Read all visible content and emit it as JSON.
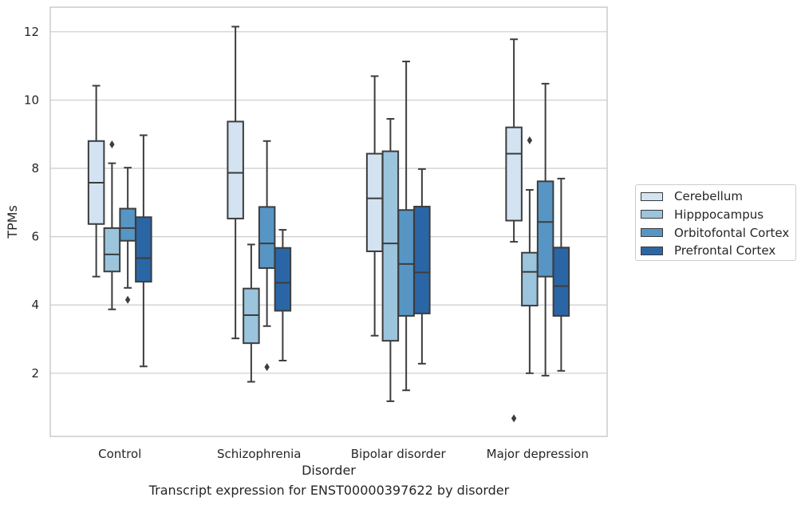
{
  "caption": "Transcript expression for ENST00000397622 by disorder",
  "chart_data": {
    "type": "boxplot",
    "title": "",
    "xlabel": "Disorder",
    "ylabel": "TPMs",
    "ylim": [
      0.15,
      12.72
    ],
    "yticks": [
      2,
      4,
      6,
      8,
      10,
      12
    ],
    "grid": "horizontal",
    "legend_position": "right",
    "categories": [
      "Control",
      "Schizophrenia",
      "Bipolar disorder",
      "Major depression"
    ],
    "series": [
      {
        "name": "Cerebellum",
        "color": "#d3e3f2",
        "boxes": [
          {
            "whislo": 4.83,
            "q1": 6.37,
            "med": 7.58,
            "q3": 8.8,
            "whishi": 10.42,
            "fliers": []
          },
          {
            "whislo": 3.02,
            "q1": 6.53,
            "med": 7.87,
            "q3": 9.37,
            "whishi": 12.15,
            "fliers": []
          },
          {
            "whislo": 3.1,
            "q1": 5.57,
            "med": 7.12,
            "q3": 8.43,
            "whishi": 10.7,
            "fliers": []
          },
          {
            "whislo": 5.85,
            "q1": 6.47,
            "med": 8.43,
            "q3": 9.2,
            "whishi": 11.78,
            "fliers": [
              0.68
            ]
          }
        ]
      },
      {
        "name": "Hipppocampus",
        "color": "#9bc4dd",
        "boxes": [
          {
            "whislo": 3.87,
            "q1": 4.98,
            "med": 5.48,
            "q3": 6.25,
            "whishi": 8.15,
            "fliers": [
              8.7
            ]
          },
          {
            "whislo": 1.75,
            "q1": 2.88,
            "med": 3.7,
            "q3": 4.48,
            "whishi": 5.77,
            "fliers": []
          },
          {
            "whislo": 1.18,
            "q1": 2.95,
            "med": 5.8,
            "q3": 8.5,
            "whishi": 9.45,
            "fliers": []
          },
          {
            "whislo": 2.0,
            "q1": 3.98,
            "med": 4.97,
            "q3": 5.53,
            "whishi": 7.37,
            "fliers": [
              8.82
            ]
          }
        ]
      },
      {
        "name": "Orbitofontal Cortex",
        "color": "#5796c4",
        "boxes": [
          {
            "whislo": 4.5,
            "q1": 5.88,
            "med": 6.25,
            "q3": 6.82,
            "whishi": 8.02,
            "fliers": [
              4.15
            ]
          },
          {
            "whislo": 3.38,
            "q1": 5.08,
            "med": 5.8,
            "q3": 6.87,
            "whishi": 8.8,
            "fliers": [
              2.18
            ]
          },
          {
            "whislo": 1.5,
            "q1": 3.68,
            "med": 5.2,
            "q3": 6.78,
            "whishi": 11.13,
            "fliers": []
          },
          {
            "whislo": 1.93,
            "q1": 4.83,
            "med": 6.43,
            "q3": 7.62,
            "whishi": 10.48,
            "fliers": []
          }
        ]
      },
      {
        "name": "Prefrontal Cortex",
        "color": "#2a66a5",
        "boxes": [
          {
            "whislo": 2.2,
            "q1": 4.68,
            "med": 5.37,
            "q3": 6.57,
            "whishi": 8.97,
            "fliers": []
          },
          {
            "whislo": 2.37,
            "q1": 3.83,
            "med": 4.65,
            "q3": 5.67,
            "whishi": 6.2,
            "fliers": []
          },
          {
            "whislo": 2.28,
            "q1": 3.75,
            "med": 4.95,
            "q3": 6.88,
            "whishi": 7.98,
            "fliers": []
          },
          {
            "whislo": 2.07,
            "q1": 3.68,
            "med": 4.55,
            "q3": 5.68,
            "whishi": 7.7,
            "fliers": []
          }
        ]
      }
    ]
  }
}
